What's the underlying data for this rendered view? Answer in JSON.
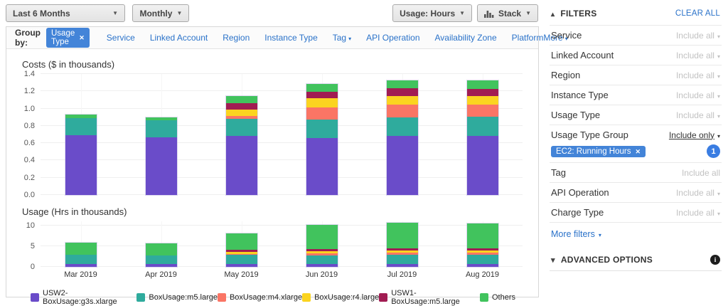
{
  "toolbar": {
    "date_range": "Last 6 Months",
    "granularity": "Monthly",
    "metric": "Usage: Hours",
    "chart_style": "Stack"
  },
  "group_by": {
    "label": "Group by:",
    "active_chip": "Usage Type",
    "links": [
      {
        "label": "Service",
        "caret": false
      },
      {
        "label": "Linked Account",
        "caret": false
      },
      {
        "label": "Region",
        "caret": false
      },
      {
        "label": "Instance Type",
        "caret": false
      },
      {
        "label": "Tag",
        "caret": true
      },
      {
        "label": "API Operation",
        "caret": false
      },
      {
        "label": "Availability Zone",
        "caret": false
      },
      {
        "label": "Platform",
        "caret": false
      }
    ],
    "more_label": "More"
  },
  "legend": [
    {
      "name": "USW2-BoxUsage:g3s.xlarge",
      "color": "#6a4cc9"
    },
    {
      "name": "BoxUsage:m5.large",
      "color": "#2fab9d"
    },
    {
      "name": "BoxUsage:m4.xlarge",
      "color": "#fa7565"
    },
    {
      "name": "BoxUsage:r4.large",
      "color": "#fbd420"
    },
    {
      "name": "USW1-BoxUsage:m5.large",
      "color": "#a11c52"
    },
    {
      "name": "Others",
      "color": "#41c35d"
    }
  ],
  "chart_data": [
    {
      "type": "bar",
      "stacked": true,
      "title": "Costs ($ in thousands)",
      "categories": [
        "Mar 2019",
        "Apr 2019",
        "May 2019",
        "Jun 2019",
        "Jul 2019",
        "Aug 2019"
      ],
      "ylim": [
        0,
        1.4
      ],
      "yticks": [
        {
          "v": 0,
          "label": "0.0"
        },
        {
          "v": 0.2,
          "label": "0.2"
        },
        {
          "v": 0.4,
          "label": "0.4"
        },
        {
          "v": 0.6,
          "label": "0.6"
        },
        {
          "v": 0.8,
          "label": "0.8"
        },
        {
          "v": 1.0,
          "label": "1.0"
        },
        {
          "v": 1.2,
          "label": "1.2"
        },
        {
          "v": 1.4,
          "label": "1.4"
        }
      ],
      "series": [
        {
          "name": "USW2-BoxUsage:g3s.xlarge",
          "color": "#6a4cc9",
          "values": [
            0.69,
            0.67,
            0.68,
            0.66,
            0.68,
            0.68
          ]
        },
        {
          "name": "BoxUsage:m5.large",
          "color": "#2fab9d",
          "values": [
            0.2,
            0.2,
            0.2,
            0.21,
            0.21,
            0.22
          ]
        },
        {
          "name": "BoxUsage:m4.xlarge",
          "color": "#fa7565",
          "values": [
            0,
            0,
            0.03,
            0.14,
            0.15,
            0.14
          ]
        },
        {
          "name": "BoxUsage:r4.large",
          "color": "#fbd420",
          "values": [
            0,
            0,
            0.07,
            0.11,
            0.1,
            0.1
          ]
        },
        {
          "name": "USW1-BoxUsage:m5.large",
          "color": "#a11c52",
          "values": [
            0,
            0,
            0.07,
            0.07,
            0.09,
            0.08
          ]
        },
        {
          "name": "Others",
          "color": "#41c35d",
          "values": [
            0.04,
            0.03,
            0.08,
            0.09,
            0.09,
            0.1
          ]
        }
      ]
    },
    {
      "type": "bar",
      "stacked": true,
      "title": "Usage (Hrs in thousands)",
      "categories": [
        "Mar 2019",
        "Apr 2019",
        "May 2019",
        "Jun 2019",
        "Jul 2019",
        "Aug 2019"
      ],
      "ylim": [
        0,
        11
      ],
      "yticks": [
        {
          "v": 0,
          "label": "0"
        },
        {
          "v": 5,
          "label": "5"
        },
        {
          "v": 10,
          "label": "10"
        }
      ],
      "series": [
        {
          "name": "USW2-BoxUsage:g3s.xlarge",
          "color": "#6a4cc9",
          "values": [
            0.7,
            0.7,
            0.7,
            0.7,
            0.7,
            0.7
          ]
        },
        {
          "name": "BoxUsage:m5.large",
          "color": "#2fab9d",
          "values": [
            2.3,
            2.1,
            2.2,
            2.1,
            2.2,
            2.2
          ]
        },
        {
          "name": "BoxUsage:m4.xlarge",
          "color": "#fa7565",
          "values": [
            0,
            0,
            0.15,
            0.6,
            0.6,
            0.6
          ]
        },
        {
          "name": "BoxUsage:r4.large",
          "color": "#fbd420",
          "values": [
            0,
            0,
            0.55,
            0.5,
            0.5,
            0.5
          ]
        },
        {
          "name": "USW1-BoxUsage:m5.large",
          "color": "#a11c52",
          "values": [
            0,
            0,
            0.5,
            0.6,
            0.6,
            0.6
          ]
        },
        {
          "name": "Others",
          "color": "#41c35d",
          "values": [
            2.9,
            2.9,
            3.9,
            5.8,
            6.2,
            6.0
          ]
        }
      ]
    }
  ],
  "filters": {
    "title": "FILTERS",
    "clear_all": "CLEAR ALL",
    "rows": [
      {
        "label": "Service",
        "value": "Include all",
        "caret": true,
        "muted": true
      },
      {
        "label": "Linked Account",
        "value": "Include all",
        "caret": true,
        "muted": true
      },
      {
        "label": "Region",
        "value": "Include all",
        "caret": true,
        "muted": true
      },
      {
        "label": "Instance Type",
        "value": "Include all",
        "caret": true,
        "muted": true
      },
      {
        "label": "Usage Type",
        "value": "Include all",
        "caret": true,
        "muted": true
      },
      {
        "label": "Usage Type Group",
        "value": "Include only",
        "caret": true,
        "muted": false,
        "chip": "EC2: Running Hours",
        "badge": "1"
      },
      {
        "label": "Tag",
        "value": "Include all",
        "caret": false,
        "muted": true
      },
      {
        "label": "API Operation",
        "value": "Include all",
        "caret": true,
        "muted": true
      },
      {
        "label": "Charge Type",
        "value": "Include all",
        "caret": true,
        "muted": true
      }
    ],
    "more_filters": "More filters",
    "advanced_options": "ADVANCED OPTIONS"
  },
  "colors": {
    "accent_blue": "#2a72c9",
    "chip_blue": "#4384d8",
    "badge_blue": "#3a7de2"
  }
}
